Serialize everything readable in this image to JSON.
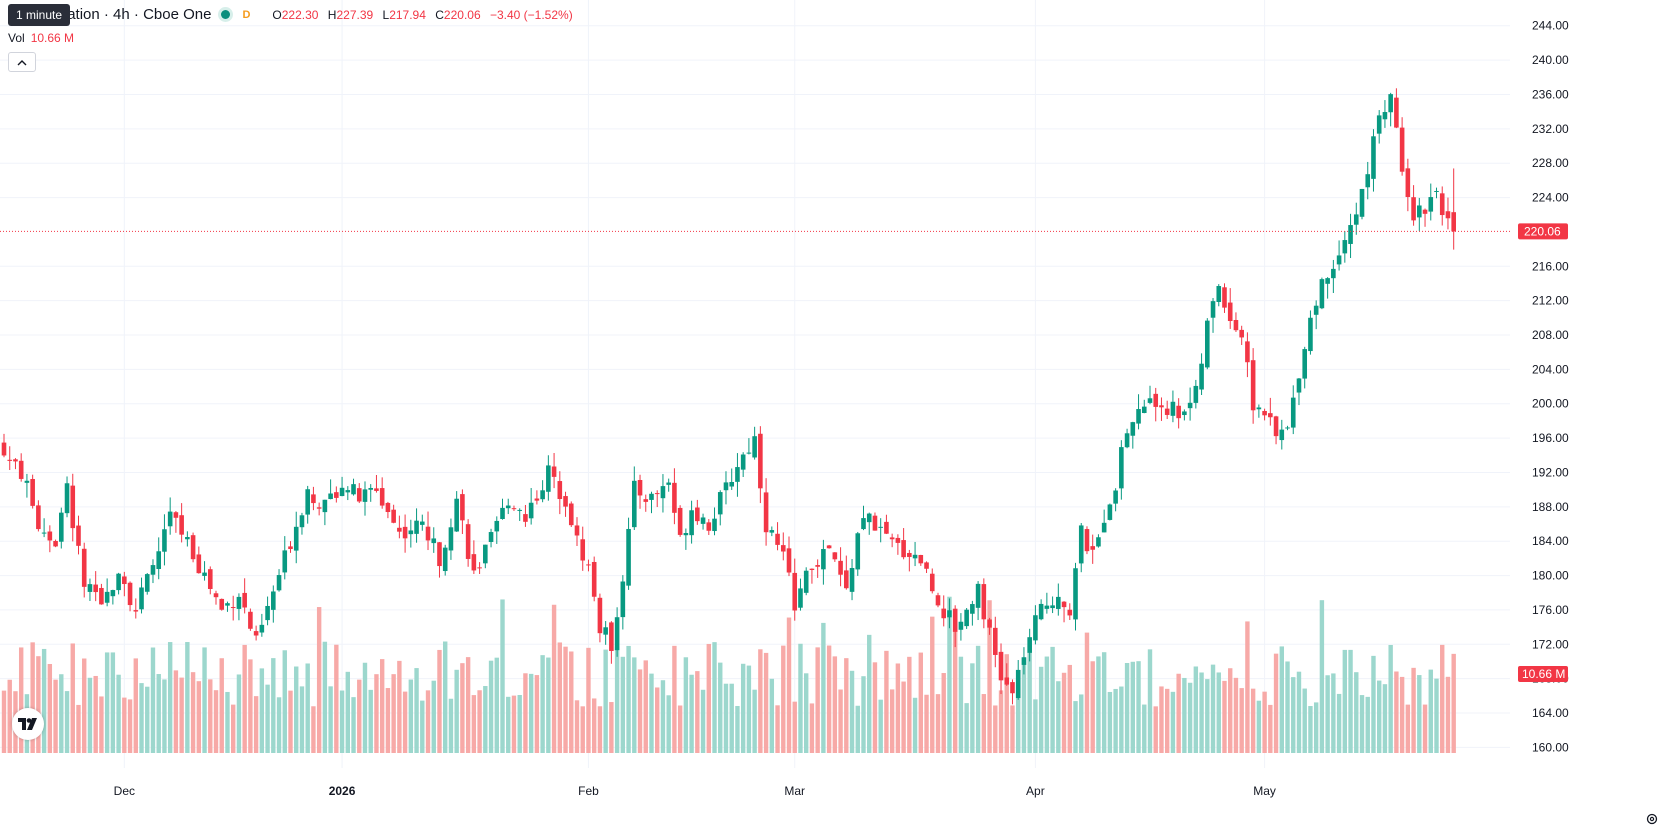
{
  "legend": {
    "tooltip": "1 minute",
    "symbol_title": "A Corporation · 4h · Cboe One",
    "d_marker": "D",
    "o_label": "O",
    "o_value": "222.30",
    "h_label": "H",
    "h_value": "227.39",
    "l_label": "L",
    "l_value": "217.94",
    "c_label": "C",
    "c_value": "220.06",
    "change": "−3.40 (−1.52%)"
  },
  "volume_legend": {
    "label": "Vol",
    "value": "10.66 M"
  },
  "icons": {
    "collapse": "chevron-up-icon",
    "logo": "tradingview-logo",
    "settings": "gear-icon"
  },
  "colors": {
    "up": "#089981",
    "down": "#f23645",
    "up_vol": "#9cd7cd",
    "down_vol": "#f7a9a7"
  },
  "chart_data": {
    "type": "candlestick",
    "interval": "4h",
    "price_axis": {
      "ticks": [
        "160.00",
        "164.00",
        "168.00",
        "172.00",
        "176.00",
        "180.00",
        "184.00",
        "188.00",
        "192.00",
        "196.00",
        "200.00",
        "204.00",
        "208.00",
        "212.00",
        "216.00",
        "220.06",
        "224.00",
        "228.00",
        "232.00",
        "236.00",
        "240.00",
        "244.00"
      ],
      "range": [
        157.6,
        245.6
      ]
    },
    "current_price_label": "220.06",
    "current_volume_label": "10.66 M",
    "time_axis": {
      "labels": [
        {
          "text": "Dec",
          "bar": 21,
          "bold": false
        },
        {
          "text": "2026",
          "bar": 59,
          "bold": true
        },
        {
          "text": "Feb",
          "bar": 102,
          "bold": false
        },
        {
          "text": "Mar",
          "bar": 138,
          "bold": false
        },
        {
          "text": "Apr",
          "bar": 180,
          "bold": false
        },
        {
          "text": "May",
          "bar": 220,
          "bold": false
        }
      ]
    },
    "anchors": [
      [
        0,
        194
      ],
      [
        3,
        192
      ],
      [
        6,
        186
      ],
      [
        9,
        184
      ],
      [
        11,
        190
      ],
      [
        14,
        179
      ],
      [
        17,
        176
      ],
      [
        20,
        181
      ],
      [
        23,
        176
      ],
      [
        26,
        181
      ],
      [
        29,
        187
      ],
      [
        32,
        184
      ],
      [
        35,
        180
      ],
      [
        38,
        176
      ],
      [
        41,
        178
      ],
      [
        44,
        172
      ],
      [
        47,
        178
      ],
      [
        50,
        184
      ],
      [
        53,
        190
      ],
      [
        56,
        188
      ],
      [
        59,
        191
      ],
      [
        62,
        189
      ],
      [
        65,
        190
      ],
      [
        69,
        185
      ],
      [
        73,
        186
      ],
      [
        76,
        182
      ],
      [
        79,
        189
      ],
      [
        82,
        180
      ],
      [
        85,
        184
      ],
      [
        88,
        189
      ],
      [
        91,
        187
      ],
      [
        95,
        192
      ],
      [
        98,
        189
      ],
      [
        100,
        184
      ],
      [
        102,
        181
      ],
      [
        104,
        174
      ],
      [
        106,
        172
      ],
      [
        108,
        180
      ],
      [
        110,
        190
      ],
      [
        113,
        189
      ],
      [
        116,
        191
      ],
      [
        118,
        184
      ],
      [
        120,
        188
      ],
      [
        123,
        186
      ],
      [
        126,
        190
      ],
      [
        128,
        193
      ],
      [
        131,
        196
      ],
      [
        133,
        186
      ],
      [
        136,
        182
      ],
      [
        138,
        177
      ],
      [
        141,
        181
      ],
      [
        144,
        183
      ],
      [
        147,
        178
      ],
      [
        149,
        185
      ],
      [
        151,
        187
      ],
      [
        154,
        184
      ],
      [
        157,
        183
      ],
      [
        160,
        182
      ],
      [
        163,
        177
      ],
      [
        166,
        174
      ],
      [
        168,
        176
      ],
      [
        170,
        179
      ],
      [
        172,
        173
      ],
      [
        174,
        168
      ],
      [
        176,
        166
      ],
      [
        178,
        171
      ],
      [
        181,
        176
      ],
      [
        184,
        178
      ],
      [
        186,
        176
      ],
      [
        188,
        185
      ],
      [
        190,
        182
      ],
      [
        192,
        187
      ],
      [
        194,
        191
      ],
      [
        196,
        197
      ],
      [
        199,
        200
      ],
      [
        202,
        200
      ],
      [
        205,
        199
      ],
      [
        208,
        201
      ],
      [
        210,
        209
      ],
      [
        212,
        214
      ],
      [
        214,
        210
      ],
      [
        216,
        208
      ],
      [
        218,
        200
      ],
      [
        220,
        199
      ],
      [
        222,
        196
      ],
      [
        224,
        197
      ],
      [
        226,
        204
      ],
      [
        228,
        210
      ],
      [
        230,
        214
      ],
      [
        232,
        216
      ],
      [
        234,
        220
      ],
      [
        236,
        222
      ],
      [
        238,
        227
      ],
      [
        240,
        234
      ],
      [
        242,
        235
      ],
      [
        244,
        228
      ],
      [
        246,
        222
      ],
      [
        248,
        223
      ],
      [
        250,
        225
      ],
      [
        252,
        221
      ],
      [
        253,
        220.06
      ]
    ],
    "volume_range": [
      0,
      20
    ]
  }
}
